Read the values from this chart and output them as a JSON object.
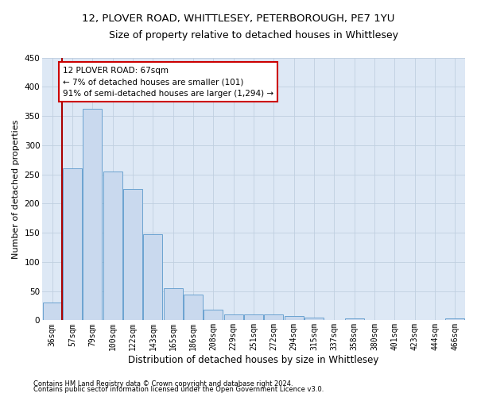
{
  "title1": "12, PLOVER ROAD, WHITTLESEY, PETERBOROUGH, PE7 1YU",
  "title2": "Size of property relative to detached houses in Whittlesey",
  "xlabel": "Distribution of detached houses by size in Whittlesey",
  "ylabel": "Number of detached properties",
  "categories": [
    "36sqm",
    "57sqm",
    "79sqm",
    "100sqm",
    "122sqm",
    "143sqm",
    "165sqm",
    "186sqm",
    "208sqm",
    "229sqm",
    "251sqm",
    "272sqm",
    "294sqm",
    "315sqm",
    "337sqm",
    "358sqm",
    "380sqm",
    "401sqm",
    "423sqm",
    "444sqm",
    "466sqm"
  ],
  "values": [
    30,
    260,
    362,
    255,
    225,
    148,
    55,
    44,
    18,
    10,
    10,
    10,
    7,
    5,
    0,
    3,
    0,
    0,
    0,
    0,
    3
  ],
  "bar_color": "#c9d9ee",
  "bar_edge_color": "#6ba3d0",
  "vline_color": "#aa0000",
  "vline_position": 0.5,
  "annotation_text": "12 PLOVER ROAD: 67sqm\n← 7% of detached houses are smaller (101)\n91% of semi-detached houses are larger (1,294) →",
  "annotation_box_color": "#ffffff",
  "annotation_box_edge": "#cc0000",
  "ylim": [
    0,
    450
  ],
  "yticks": [
    0,
    50,
    100,
    150,
    200,
    250,
    300,
    350,
    400,
    450
  ],
  "footnote1": "Contains HM Land Registry data © Crown copyright and database right 2024.",
  "footnote2": "Contains public sector information licensed under the Open Government Licence v3.0.",
  "bg_color": "#ffffff",
  "plot_bg_color": "#dde8f5",
  "grid_color": "#c0cfe0",
  "title1_fontsize": 9.5,
  "title2_fontsize": 9,
  "xlabel_fontsize": 8.5,
  "ylabel_fontsize": 8,
  "tick_fontsize": 7,
  "footnote_fontsize": 6,
  "annotation_fontsize": 7.5
}
